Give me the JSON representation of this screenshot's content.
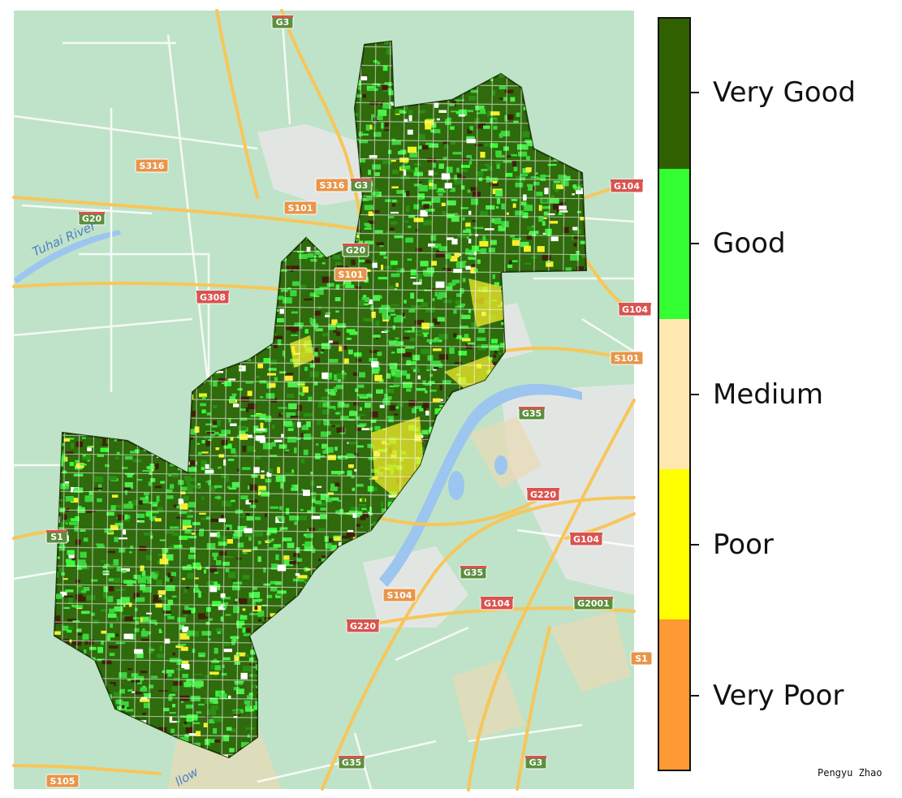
{
  "legend": {
    "classes": [
      {
        "label": "Very Good",
        "color": "#306000"
      },
      {
        "label": "Good",
        "color": "#33ff33"
      },
      {
        "label": "Medium",
        "color": "#ffe8b0"
      },
      {
        "label": "Poor",
        "color": "#ffff00"
      },
      {
        "label": "Very Poor",
        "color": "#ff9933"
      }
    ]
  },
  "map": {
    "river_label": "Tuhai River",
    "partial_label": "llow",
    "colors": {
      "land": "#bfe3c8",
      "urban": "#e6e6e6",
      "road": "#f7c65a",
      "minor_road": "#ffffff",
      "water": "#9cc5f0",
      "highway_shield": "#5b8f3d",
      "national_shield": "#d9534f",
      "provincial_shield": "#e8954a",
      "region_base": "#2f6a0c"
    },
    "shields": [
      {
        "text": "G3",
        "type": "highway"
      },
      {
        "text": "S316",
        "type": "provincial"
      },
      {
        "text": "S316",
        "type": "provincial"
      },
      {
        "text": "G3",
        "type": "highway"
      },
      {
        "text": "S101",
        "type": "provincial"
      },
      {
        "text": "G20",
        "type": "highway"
      },
      {
        "text": "G20",
        "type": "highway"
      },
      {
        "text": "S101",
        "type": "provincial"
      },
      {
        "text": "G308",
        "type": "national"
      },
      {
        "text": "G104",
        "type": "national"
      },
      {
        "text": "G104",
        "type": "national"
      },
      {
        "text": "S101",
        "type": "provincial"
      },
      {
        "text": "G35",
        "type": "highway"
      },
      {
        "text": "G220",
        "type": "national"
      },
      {
        "text": "G104",
        "type": "national"
      },
      {
        "text": "S1",
        "type": "highway"
      },
      {
        "text": "G35",
        "type": "highway"
      },
      {
        "text": "S104",
        "type": "provincial"
      },
      {
        "text": "G104",
        "type": "national"
      },
      {
        "text": "G2001",
        "type": "highway"
      },
      {
        "text": "G220",
        "type": "national"
      },
      {
        "text": "S1",
        "type": "provincial"
      },
      {
        "text": "G35",
        "type": "highway"
      },
      {
        "text": "G3",
        "type": "highway"
      },
      {
        "text": "S105",
        "type": "provincial"
      }
    ]
  },
  "credit": "Pengyu Zhao"
}
